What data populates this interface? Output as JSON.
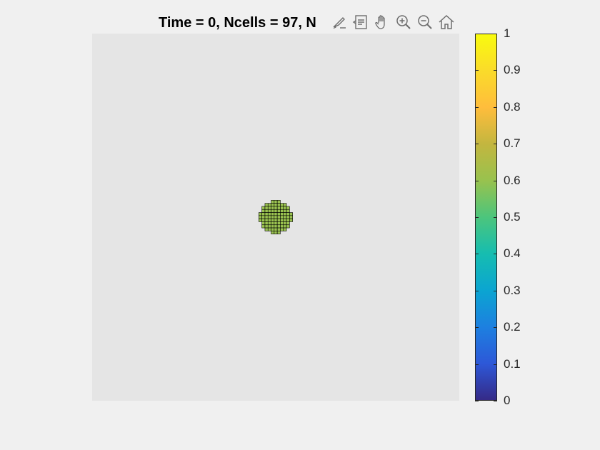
{
  "figure": {
    "title": "Time = 0, Ncells = 97, N"
  },
  "toolbar": {
    "buttons": [
      {
        "name": "brush-icon",
        "label": "Brush"
      },
      {
        "name": "data-tips-icon",
        "label": "Data Tips"
      },
      {
        "name": "pan-hand-icon",
        "label": "Pan"
      },
      {
        "name": "zoom-in-icon",
        "label": "Zoom In"
      },
      {
        "name": "zoom-out-icon",
        "label": "Zoom Out"
      },
      {
        "name": "home-icon",
        "label": "Restore View"
      }
    ]
  },
  "colors": {
    "figure_background": "#f0f0f0",
    "axes_background": "#e5e5e5",
    "cell_fill": "#9ac250",
    "cell_edge": "#000000"
  },
  "cells": {
    "rows": [
      [
        -1,
        1
      ],
      [
        -3,
        3
      ],
      [
        -4,
        4
      ],
      [
        -4,
        4
      ],
      [
        -5,
        5
      ],
      [
        -5,
        5
      ],
      [
        -5,
        5
      ],
      [
        -4,
        4
      ],
      [
        -4,
        4
      ],
      [
        -3,
        3
      ],
      [
        -1,
        1
      ]
    ],
    "count": 97
  },
  "colorbar": {
    "colormap": "parula",
    "limits": [
      0,
      1
    ],
    "ticks": [
      "0",
      "0.1",
      "0.2",
      "0.3",
      "0.4",
      "0.5",
      "0.6",
      "0.7",
      "0.8",
      "0.9",
      "1"
    ],
    "stops": [
      "#352a87",
      "#2d58d8",
      "#1d80e0",
      "#0ba5d1",
      "#16bdb0",
      "#4cc57c",
      "#98c24e",
      "#c3b63f",
      "#ffbd3c",
      "#fadb2a",
      "#f9fb0e"
    ]
  }
}
